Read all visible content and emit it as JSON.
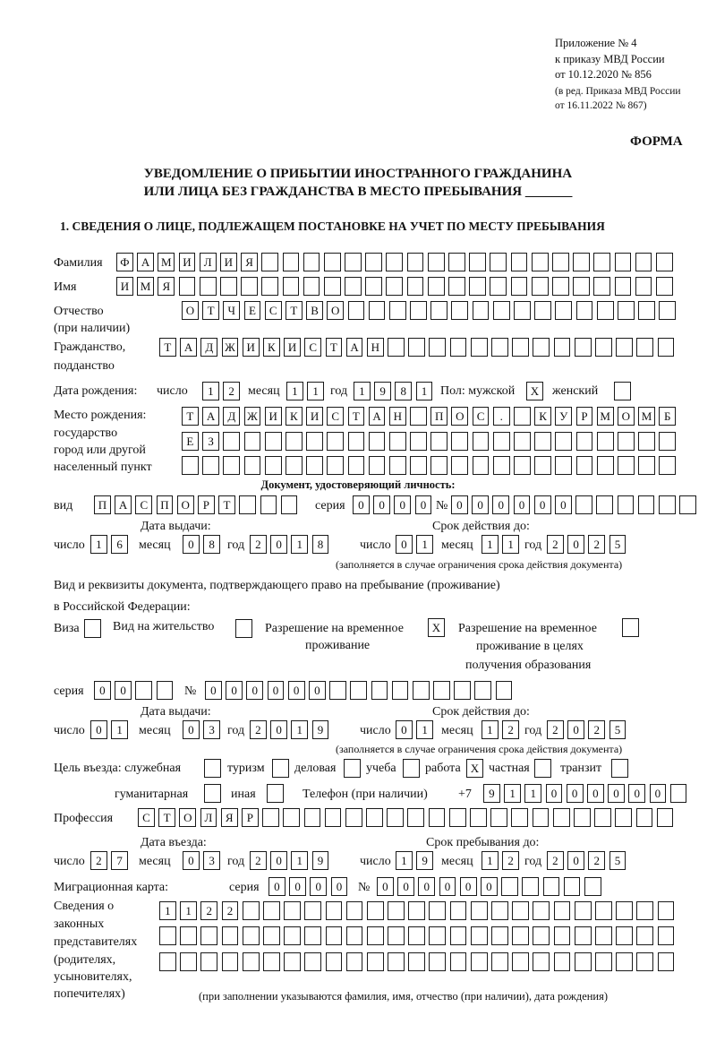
{
  "header": {
    "appendix": "Приложение № 4",
    "order": "к приказу МВД России",
    "order_date": "от 10.12.2020 № 856",
    "edition1": "(в ред. Приказа МВД России",
    "edition2": "от 16.11.2022 № 867)",
    "form_label": "ФОРМА",
    "title1": "УВЕДОМЛЕНИЕ О ПРИБЫТИИ ИНОСТРАННОГО ГРАЖДАНИНА",
    "title2": "ИЛИ ЛИЦА БЕЗ ГРАЖДАНСТВА В МЕСТО ПРЕБЫВАНИЯ _______",
    "section1": "1. СВЕДЕНИЯ О ЛИЦЕ, ПОДЛЕЖАЩЕМ ПОСТАНОВКЕ НА УЧЕТ ПО МЕСТУ ПРЕБЫВАНИЯ"
  },
  "person": {
    "surname_label": "Фамилия",
    "surname": [
      "Ф",
      "А",
      "М",
      "И",
      "Л",
      "И",
      "Я",
      "",
      "",
      "",
      "",
      "",
      "",
      "",
      "",
      "",
      "",
      "",
      "",
      "",
      "",
      "",
      "",
      "",
      "",
      "",
      ""
    ],
    "name_label": "Имя",
    "name": [
      "И",
      "М",
      "Я",
      "",
      "",
      "",
      "",
      "",
      "",
      "",
      "",
      "",
      "",
      "",
      "",
      "",
      "",
      "",
      "",
      "",
      "",
      "",
      "",
      "",
      "",
      "",
      ""
    ],
    "patronymic_label1": "Отчество",
    "patronymic_label2": "(при наличии)",
    "patronymic": [
      "О",
      "Т",
      "Ч",
      "Е",
      "С",
      "Т",
      "В",
      "О",
      "",
      "",
      "",
      "",
      "",
      "",
      "",
      "",
      "",
      "",
      "",
      "",
      "",
      "",
      "",
      ""
    ],
    "citizenship_label1": "Гражданство,",
    "citizenship_label2": "подданство",
    "citizenship": [
      "Т",
      "А",
      "Д",
      "Ж",
      "И",
      "К",
      "И",
      "С",
      "Т",
      "А",
      "Н",
      "",
      "",
      "",
      "",
      "",
      "",
      "",
      "",
      "",
      "",
      "",
      "",
      "",
      ""
    ],
    "birth_label": "Дата рождения:",
    "day_label": "число",
    "month_label": "месяц",
    "year_label": "год",
    "birth_day": [
      "1",
      "2"
    ],
    "birth_month": [
      "1",
      "1"
    ],
    "birth_year": [
      "1",
      "9",
      "8",
      "1"
    ],
    "sex_label": "Пол: мужской",
    "male": [
      "X"
    ],
    "female_label": "женский",
    "female": [
      ""
    ],
    "birthplace_label1": "Место рождения:",
    "birthplace_label2": "государство",
    "birthplace_label3": "город или другой",
    "birthplace_label4": "населенный пункт",
    "birthplace_row1": [
      "Т",
      "А",
      "Д",
      "Ж",
      "И",
      "К",
      "И",
      "С",
      "Т",
      "А",
      "Н",
      "",
      "П",
      "О",
      "С",
      ".",
      "",
      "К",
      "У",
      "Р",
      "М",
      "О",
      "М",
      "Б"
    ],
    "birthplace_row2": [
      "Е",
      "З",
      "",
      "",
      "",
      "",
      "",
      "",
      "",
      "",
      "",
      "",
      "",
      "",
      "",
      "",
      "",
      "",
      "",
      "",
      "",
      "",
      "",
      ""
    ],
    "birthplace_row3": [
      "",
      "",
      "",
      "",
      "",
      "",
      "",
      "",
      "",
      "",
      "",
      "",
      "",
      "",
      "",
      "",
      "",
      "",
      "",
      "",
      "",
      "",
      "",
      ""
    ]
  },
  "identity_doc": {
    "heading": "Документ, удостоверяющий личность:",
    "type_label": "вид",
    "type": [
      "П",
      "А",
      "С",
      "П",
      "О",
      "Р",
      "Т",
      "",
      "",
      ""
    ],
    "series_label": "серия",
    "series": [
      "0",
      "0",
      "0",
      "0"
    ],
    "number_label": "№",
    "number": [
      "0",
      "0",
      "0",
      "0",
      "0",
      "0",
      "",
      "",
      "",
      "",
      "",
      ""
    ],
    "issue_label": "Дата выдачи:",
    "valid_label": "Срок действия до:",
    "issue_day": [
      "1",
      "6"
    ],
    "issue_month": [
      "0",
      "8"
    ],
    "issue_year": [
      "2",
      "0",
      "1",
      "8"
    ],
    "valid_day": [
      "0",
      "1"
    ],
    "valid_month": [
      "1",
      "1"
    ],
    "valid_year": [
      "2",
      "0",
      "2",
      "5"
    ],
    "note": "(заполняется в случае ограничения срока действия документа)"
  },
  "residence_doc": {
    "heading1": "Вид и реквизиты документа, подтверждающего право на пребывание (проживание)",
    "heading2": "в Российской Федерации:",
    "visa_label": "Виза",
    "visa": [
      ""
    ],
    "residence_permit_label": "Вид на жительство",
    "residence_permit": [
      ""
    ],
    "temp_residence_label1": "Разрешение на временное",
    "temp_residence_label2": "проживание",
    "temp_residence": [
      "X"
    ],
    "temp_edu_label1": "Разрешение на временное",
    "temp_edu_label2": "проживание в целях",
    "temp_edu_label3": "получения образования",
    "temp_edu": [
      ""
    ],
    "series_label": "серия",
    "series": [
      "0",
      "0",
      "",
      ""
    ],
    "number_label": "№",
    "number": [
      "0",
      "0",
      "0",
      "0",
      "0",
      "0",
      "",
      "",
      "",
      "",
      "",
      "",
      "",
      "",
      ""
    ],
    "issue_label": "Дата выдачи:",
    "valid_label": "Срок действия до:",
    "issue_day": [
      "0",
      "1"
    ],
    "issue_month": [
      "0",
      "3"
    ],
    "issue_year": [
      "2",
      "0",
      "1",
      "9"
    ],
    "valid_day": [
      "0",
      "1"
    ],
    "valid_month": [
      "1",
      "2"
    ],
    "valid_year": [
      "2",
      "0",
      "2",
      "5"
    ],
    "note": "(заполняется в случае ограничения срока действия документа)"
  },
  "purpose": {
    "label": "Цель въезда: служебная",
    "official": [
      ""
    ],
    "tourism_label": "туризм",
    "tourism": [
      ""
    ],
    "business_label": "деловая",
    "business": [
      ""
    ],
    "study_label": "учеба",
    "study": [
      ""
    ],
    "work_label": "работа",
    "work": [
      "X"
    ],
    "private_label": "частная",
    "private": [
      ""
    ],
    "transit_label": "транзит",
    "transit": [
      ""
    ],
    "humanitarian_label": "гуманитарная",
    "humanitarian": [
      ""
    ],
    "other_label": "иная",
    "other": [
      ""
    ]
  },
  "phone": {
    "label": "Телефон (при наличии)",
    "prefix": "+7",
    "digits": [
      "9",
      "1",
      "1",
      "0",
      "0",
      "0",
      "0",
      "0",
      "0",
      ""
    ]
  },
  "profession": {
    "label": "Профессия",
    "value": [
      "С",
      "Т",
      "О",
      "Л",
      "Я",
      "Р",
      "",
      "",
      "",
      "",
      "",
      "",
      "",
      "",
      "",
      "",
      "",
      "",
      "",
      "",
      "",
      "",
      "",
      "",
      "",
      ""
    ]
  },
  "entry": {
    "entry_label": "Дата въезда:",
    "stay_label": "Срок пребывания до:",
    "entry_day": [
      "2",
      "7"
    ],
    "entry_month": [
      "0",
      "3"
    ],
    "entry_year": [
      "2",
      "0",
      "1",
      "9"
    ],
    "stay_day": [
      "1",
      "9"
    ],
    "stay_month": [
      "1",
      "2"
    ],
    "stay_year": [
      "2",
      "0",
      "2",
      "5"
    ]
  },
  "migration_card": {
    "label": "Миграционная карта:",
    "series_label": "серия",
    "series": [
      "0",
      "0",
      "0",
      "0"
    ],
    "number_label": "№",
    "number": [
      "0",
      "0",
      "0",
      "0",
      "0",
      "0",
      "",
      "",
      "",
      "",
      ""
    ]
  },
  "representatives": {
    "label1": "Сведения о",
    "label2": "законных",
    "label3": "представителях",
    "label4": "(родителях,",
    "label5": "усыновителях,",
    "label6": "попечителях)",
    "row1": [
      "1",
      "1",
      "2",
      "2",
      "",
      "",
      "",
      "",
      "",
      "",
      "",
      "",
      "",
      "",
      "",
      "",
      "",
      "",
      "",
      "",
      "",
      "",
      "",
      "",
      ""
    ],
    "row2": [
      "",
      "",
      "",
      "",
      "",
      "",
      "",
      "",
      "",
      "",
      "",
      "",
      "",
      "",
      "",
      "",
      "",
      "",
      "",
      "",
      "",
      "",
      "",
      "",
      ""
    ],
    "row3": [
      "",
      "",
      "",
      "",
      "",
      "",
      "",
      "",
      "",
      "",
      "",
      "",
      "",
      "",
      "",
      "",
      "",
      "",
      "",
      "",
      "",
      "",
      "",
      "",
      ""
    ],
    "note": "(при заполнении указываются фамилия, имя, отчество (при наличии), дата рождения)"
  }
}
